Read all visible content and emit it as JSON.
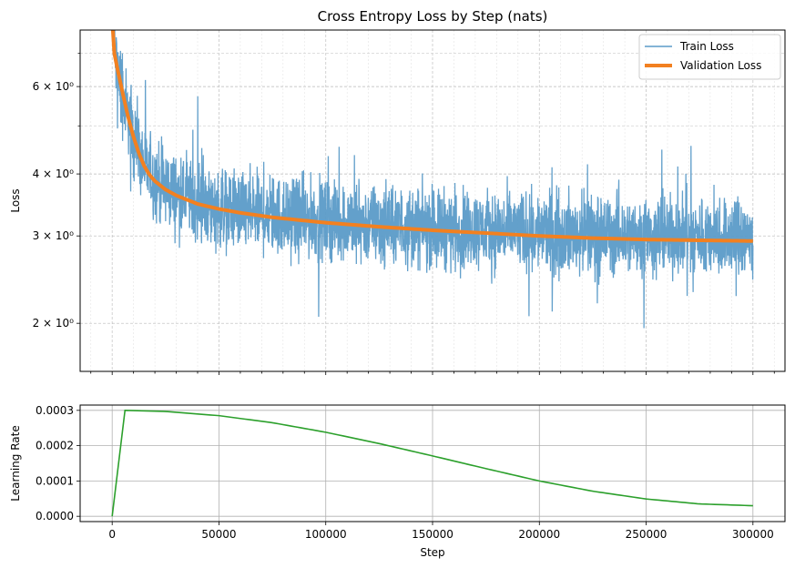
{
  "chart_data": [
    {
      "type": "line",
      "title": "Cross Entropy Loss by Step (nats)",
      "xlabel": "",
      "ylabel": "Loss",
      "yscale": "log",
      "xlim": [
        -15000,
        315000
      ],
      "ylim": [
        1.6,
        7.8
      ],
      "y_ticks": [
        {
          "value": 2,
          "label": "2 × 10⁰"
        },
        {
          "value": 3,
          "label": "3 × 10⁰"
        },
        {
          "value": 4,
          "label": "4 × 10⁰"
        },
        {
          "value": 6,
          "label": "6 × 10⁰"
        }
      ],
      "grid": true,
      "legend": "top-right",
      "series": [
        {
          "name": "Train Loss",
          "color": "#5b9bc8",
          "x": [
            0,
            1000,
            2500,
            5000,
            7500,
            10000,
            12500,
            15000,
            17500,
            20000,
            25000,
            30000,
            40000,
            50000,
            60000,
            75000,
            100000,
            125000,
            150000,
            175000,
            200000,
            225000,
            250000,
            275000,
            300000
          ],
          "values": [
            7.6,
            6.9,
            6.5,
            5.7,
            5.3,
            4.8,
            4.4,
            4.15,
            4.0,
            3.9,
            3.75,
            3.65,
            3.5,
            3.42,
            3.36,
            3.3,
            3.22,
            3.16,
            3.12,
            3.08,
            3.05,
            3.02,
            3.0,
            2.99,
            2.98
          ],
          "noise": "high-frequency fluctuation of roughly ±15% around the curve, occasional dips to about 1.75"
        },
        {
          "name": "Validation Loss",
          "color": "#f28020",
          "x": [
            0,
            1000,
            2500,
            5000,
            7500,
            10000,
            12500,
            15000,
            17500,
            20000,
            25000,
            30000,
            40000,
            50000,
            60000,
            75000,
            100000,
            125000,
            150000,
            175000,
            200000,
            225000,
            250000,
            275000,
            300000
          ],
          "values": [
            8.2,
            7.0,
            6.5,
            5.8,
            5.2,
            4.75,
            4.4,
            4.15,
            3.98,
            3.87,
            3.72,
            3.62,
            3.48,
            3.4,
            3.34,
            3.27,
            3.19,
            3.13,
            3.08,
            3.04,
            3.0,
            2.97,
            2.95,
            2.94,
            2.93
          ]
        }
      ]
    },
    {
      "type": "line",
      "title": "",
      "xlabel": "Step",
      "ylabel": "Learning Rate",
      "xlim": [
        -15000,
        315000
      ],
      "ylim": [
        -1.5e-05,
        0.000315
      ],
      "x_ticks": [
        {
          "value": 0,
          "label": "0"
        },
        {
          "value": 50000,
          "label": "50000"
        },
        {
          "value": 100000,
          "label": "100000"
        },
        {
          "value": 150000,
          "label": "150000"
        },
        {
          "value": 200000,
          "label": "200000"
        },
        {
          "value": 250000,
          "label": "250000"
        },
        {
          "value": 300000,
          "label": "300000"
        }
      ],
      "y_ticks": [
        {
          "value": 0,
          "label": "0.0000"
        },
        {
          "value": 0.0001,
          "label": "0.0001"
        },
        {
          "value": 0.0002,
          "label": "0.0002"
        },
        {
          "value": 0.0003,
          "label": "0.0003"
        }
      ],
      "grid": true,
      "series": [
        {
          "color": "#2ca02c",
          "x": [
            0,
            6000,
            25000,
            50000,
            75000,
            100000,
            125000,
            150000,
            175000,
            200000,
            225000,
            250000,
            275000,
            300000
          ],
          "values": [
            0,
            0.0003,
            0.000297,
            0.000285,
            0.000265,
            0.000238,
            0.000206,
            0.000171,
            0.000135,
            0.0001,
            7.1e-05,
            4.9e-05,
            3.5e-05,
            3e-05
          ]
        }
      ]
    }
  ]
}
